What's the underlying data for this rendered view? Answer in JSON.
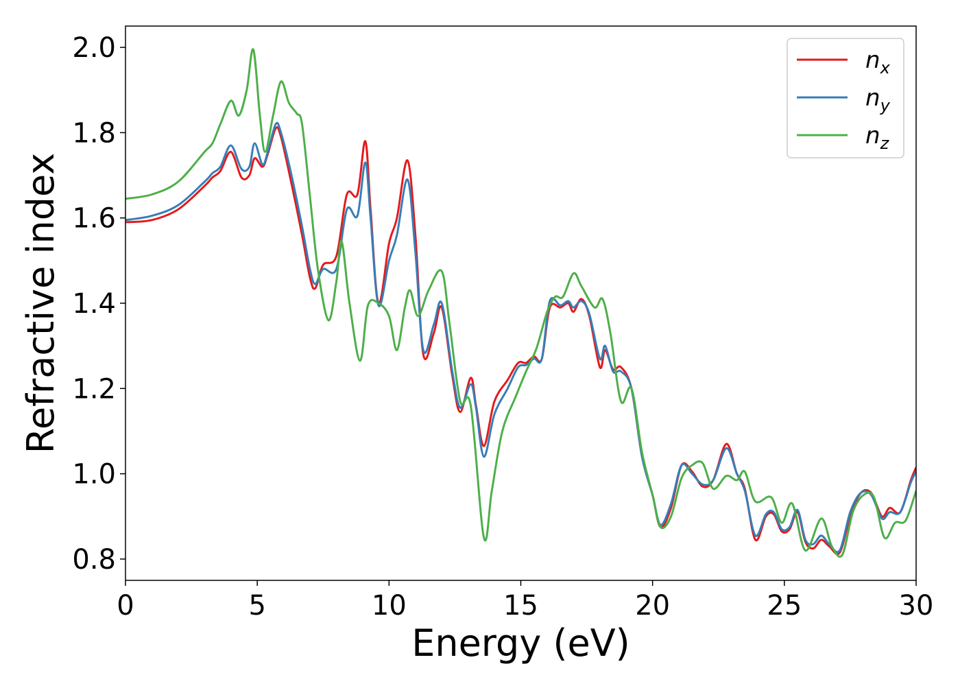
{
  "chart_data": {
    "type": "line",
    "xlabel": "Energy (eV)",
    "ylabel": "Refractive index",
    "xlim": [
      0,
      30
    ],
    "ylim": [
      0.75,
      2.05
    ],
    "xticks": [
      0,
      5,
      10,
      15,
      20,
      25,
      30
    ],
    "xtick_labels": [
      "0",
      "5",
      "10",
      "15",
      "20",
      "25",
      "30"
    ],
    "yticks": [
      0.8,
      1.0,
      1.2,
      1.4,
      1.6,
      1.8,
      2.0
    ],
    "ytick_labels": [
      "0.8",
      "1.0",
      "1.2",
      "1.4",
      "1.6",
      "1.8",
      "2.0"
    ],
    "grid": false,
    "legend_position": "top-right",
    "series": [
      {
        "name": "n",
        "subscript": "x",
        "color": "#e41a1c",
        "points": [
          [
            0,
            1.59
          ],
          [
            1,
            1.595
          ],
          [
            2,
            1.62
          ],
          [
            3,
            1.675
          ],
          [
            3.3,
            1.695
          ],
          [
            3.6,
            1.71
          ],
          [
            4,
            1.755
          ],
          [
            4.4,
            1.695
          ],
          [
            4.7,
            1.7
          ],
          [
            4.9,
            1.74
          ],
          [
            5.2,
            1.72
          ],
          [
            5.4,
            1.75
          ],
          [
            5.7,
            1.81
          ],
          [
            5.9,
            1.79
          ],
          [
            6.3,
            1.68
          ],
          [
            6.7,
            1.56
          ],
          [
            7.0,
            1.46
          ],
          [
            7.2,
            1.435
          ],
          [
            7.5,
            1.49
          ],
          [
            8.0,
            1.51
          ],
          [
            8.4,
            1.655
          ],
          [
            8.8,
            1.655
          ],
          [
            9.1,
            1.78
          ],
          [
            9.3,
            1.62
          ],
          [
            9.6,
            1.4
          ],
          [
            10.0,
            1.54
          ],
          [
            10.3,
            1.6
          ],
          [
            10.7,
            1.735
          ],
          [
            11.0,
            1.56
          ],
          [
            11.3,
            1.28
          ],
          [
            11.7,
            1.33
          ],
          [
            12.0,
            1.39
          ],
          [
            12.4,
            1.23
          ],
          [
            12.7,
            1.145
          ],
          [
            13.1,
            1.225
          ],
          [
            13.3,
            1.16
          ],
          [
            13.6,
            1.065
          ],
          [
            14.0,
            1.17
          ],
          [
            14.5,
            1.22
          ],
          [
            14.9,
            1.26
          ],
          [
            15.2,
            1.26
          ],
          [
            15.5,
            1.275
          ],
          [
            15.8,
            1.27
          ],
          [
            16.1,
            1.39
          ],
          [
            16.5,
            1.39
          ],
          [
            16.8,
            1.4
          ],
          [
            17.0,
            1.38
          ],
          [
            17.3,
            1.41
          ],
          [
            17.6,
            1.37
          ],
          [
            18.0,
            1.25
          ],
          [
            18.2,
            1.29
          ],
          [
            18.5,
            1.245
          ],
          [
            18.8,
            1.25
          ],
          [
            19.2,
            1.2
          ],
          [
            19.6,
            1.04
          ],
          [
            20.0,
            0.95
          ],
          [
            20.3,
            0.875
          ],
          [
            20.7,
            0.92
          ],
          [
            21.1,
            1.02
          ],
          [
            21.5,
            1.005
          ],
          [
            21.9,
            0.97
          ],
          [
            22.3,
            0.985
          ],
          [
            22.8,
            1.07
          ],
          [
            23.2,
            1.0
          ],
          [
            23.5,
            0.965
          ],
          [
            23.9,
            0.845
          ],
          [
            24.3,
            0.9
          ],
          [
            24.6,
            0.905
          ],
          [
            24.9,
            0.865
          ],
          [
            25.2,
            0.87
          ],
          [
            25.5,
            0.91
          ],
          [
            25.8,
            0.84
          ],
          [
            26.1,
            0.825
          ],
          [
            26.4,
            0.845
          ],
          [
            26.7,
            0.83
          ],
          [
            27.1,
            0.815
          ],
          [
            27.5,
            0.9
          ],
          [
            27.9,
            0.955
          ],
          [
            28.3,
            0.955
          ],
          [
            28.7,
            0.9
          ],
          [
            29.0,
            0.92
          ],
          [
            29.4,
            0.91
          ],
          [
            29.8,
            0.985
          ],
          [
            30.0,
            1.015
          ]
        ]
      },
      {
        "name": "n",
        "subscript": "y",
        "color": "#377eb8",
        "points": [
          [
            0,
            1.595
          ],
          [
            1,
            1.605
          ],
          [
            2,
            1.63
          ],
          [
            3,
            1.685
          ],
          [
            3.3,
            1.705
          ],
          [
            3.6,
            1.72
          ],
          [
            4,
            1.77
          ],
          [
            4.4,
            1.715
          ],
          [
            4.7,
            1.72
          ],
          [
            4.9,
            1.775
          ],
          [
            5.2,
            1.725
          ],
          [
            5.4,
            1.755
          ],
          [
            5.7,
            1.82
          ],
          [
            5.9,
            1.8
          ],
          [
            6.3,
            1.7
          ],
          [
            6.7,
            1.58
          ],
          [
            7.0,
            1.48
          ],
          [
            7.2,
            1.445
          ],
          [
            7.5,
            1.48
          ],
          [
            8.0,
            1.48
          ],
          [
            8.4,
            1.62
          ],
          [
            8.8,
            1.605
          ],
          [
            9.1,
            1.73
          ],
          [
            9.3,
            1.6
          ],
          [
            9.6,
            1.395
          ],
          [
            10.0,
            1.5
          ],
          [
            10.3,
            1.56
          ],
          [
            10.7,
            1.69
          ],
          [
            11.0,
            1.52
          ],
          [
            11.3,
            1.29
          ],
          [
            11.7,
            1.35
          ],
          [
            12.0,
            1.4
          ],
          [
            12.4,
            1.24
          ],
          [
            12.7,
            1.155
          ],
          [
            13.1,
            1.21
          ],
          [
            13.3,
            1.155
          ],
          [
            13.6,
            1.04
          ],
          [
            14.0,
            1.14
          ],
          [
            14.5,
            1.2
          ],
          [
            14.9,
            1.25
          ],
          [
            15.2,
            1.255
          ],
          [
            15.5,
            1.27
          ],
          [
            15.8,
            1.27
          ],
          [
            16.1,
            1.405
          ],
          [
            16.5,
            1.395
          ],
          [
            16.8,
            1.405
          ],
          [
            17.0,
            1.39
          ],
          [
            17.3,
            1.405
          ],
          [
            17.6,
            1.375
          ],
          [
            18.0,
            1.27
          ],
          [
            18.2,
            1.3
          ],
          [
            18.5,
            1.24
          ],
          [
            18.8,
            1.24
          ],
          [
            19.2,
            1.2
          ],
          [
            19.6,
            1.04
          ],
          [
            20.0,
            0.95
          ],
          [
            20.3,
            0.88
          ],
          [
            20.7,
            0.93
          ],
          [
            21.1,
            1.02
          ],
          [
            21.5,
            1.0
          ],
          [
            21.9,
            0.975
          ],
          [
            22.3,
            0.985
          ],
          [
            22.8,
            1.06
          ],
          [
            23.2,
            1.0
          ],
          [
            23.5,
            0.96
          ],
          [
            23.9,
            0.855
          ],
          [
            24.3,
            0.905
          ],
          [
            24.6,
            0.91
          ],
          [
            24.9,
            0.87
          ],
          [
            25.2,
            0.875
          ],
          [
            25.5,
            0.915
          ],
          [
            25.8,
            0.845
          ],
          [
            26.1,
            0.835
          ],
          [
            26.4,
            0.855
          ],
          [
            26.7,
            0.835
          ],
          [
            27.1,
            0.82
          ],
          [
            27.5,
            0.91
          ],
          [
            27.9,
            0.955
          ],
          [
            28.3,
            0.95
          ],
          [
            28.7,
            0.895
          ],
          [
            29.0,
            0.91
          ],
          [
            29.4,
            0.91
          ],
          [
            29.8,
            0.98
          ],
          [
            30.0,
            1.005
          ]
        ]
      },
      {
        "name": "n",
        "subscript": "z",
        "color": "#4daf4a",
        "points": [
          [
            0,
            1.645
          ],
          [
            1,
            1.655
          ],
          [
            2,
            1.685
          ],
          [
            3,
            1.755
          ],
          [
            3.3,
            1.775
          ],
          [
            3.6,
            1.82
          ],
          [
            4,
            1.875
          ],
          [
            4.3,
            1.84
          ],
          [
            4.6,
            1.9
          ],
          [
            4.85,
            1.995
          ],
          [
            5.1,
            1.84
          ],
          [
            5.3,
            1.755
          ],
          [
            5.6,
            1.84
          ],
          [
            5.9,
            1.92
          ],
          [
            6.2,
            1.87
          ],
          [
            6.5,
            1.845
          ],
          [
            6.7,
            1.82
          ],
          [
            7.0,
            1.65
          ],
          [
            7.3,
            1.48
          ],
          [
            7.7,
            1.36
          ],
          [
            8.0,
            1.45
          ],
          [
            8.2,
            1.545
          ],
          [
            8.5,
            1.4
          ],
          [
            8.9,
            1.265
          ],
          [
            9.2,
            1.395
          ],
          [
            9.6,
            1.4
          ],
          [
            10.0,
            1.37
          ],
          [
            10.3,
            1.29
          ],
          [
            10.6,
            1.39
          ],
          [
            10.8,
            1.43
          ],
          [
            11.1,
            1.37
          ],
          [
            11.5,
            1.43
          ],
          [
            12.0,
            1.475
          ],
          [
            12.3,
            1.35
          ],
          [
            12.7,
            1.17
          ],
          [
            13.1,
            1.16
          ],
          [
            13.6,
            0.85
          ],
          [
            13.9,
            0.96
          ],
          [
            14.3,
            1.1
          ],
          [
            14.8,
            1.18
          ],
          [
            15.2,
            1.24
          ],
          [
            15.6,
            1.295
          ],
          [
            16.0,
            1.38
          ],
          [
            16.3,
            1.415
          ],
          [
            16.6,
            1.415
          ],
          [
            17.0,
            1.47
          ],
          [
            17.3,
            1.44
          ],
          [
            17.8,
            1.39
          ],
          [
            18.1,
            1.41
          ],
          [
            18.4,
            1.33
          ],
          [
            18.8,
            1.17
          ],
          [
            19.2,
            1.2
          ],
          [
            19.6,
            1.05
          ],
          [
            20.0,
            0.95
          ],
          [
            20.3,
            0.875
          ],
          [
            20.7,
            0.9
          ],
          [
            21.1,
            0.99
          ],
          [
            21.5,
            1.02
          ],
          [
            21.9,
            1.025
          ],
          [
            22.3,
            0.965
          ],
          [
            22.8,
            0.995
          ],
          [
            23.2,
            0.985
          ],
          [
            23.5,
            1.005
          ],
          [
            23.9,
            0.935
          ],
          [
            24.5,
            0.945
          ],
          [
            24.9,
            0.885
          ],
          [
            25.3,
            0.93
          ],
          [
            25.8,
            0.82
          ],
          [
            26.4,
            0.895
          ],
          [
            26.8,
            0.83
          ],
          [
            27.2,
            0.81
          ],
          [
            27.6,
            0.91
          ],
          [
            28.0,
            0.95
          ],
          [
            28.4,
            0.945
          ],
          [
            28.8,
            0.85
          ],
          [
            29.2,
            0.885
          ],
          [
            29.6,
            0.89
          ],
          [
            30.0,
            0.96
          ]
        ]
      }
    ]
  }
}
